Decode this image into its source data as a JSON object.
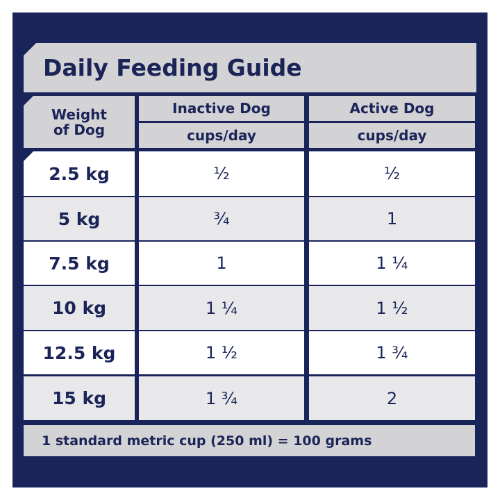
{
  "title": "Daily Feeding Guide",
  "header": {
    "weight": [
      "Weight",
      "of Dog"
    ],
    "inactive": "Inactive Dog",
    "active": "Active Dog",
    "unit": "cups/day"
  },
  "rows": [
    {
      "weight": "2.5 kg",
      "inactive": "½",
      "active": "½"
    },
    {
      "weight": "5 kg",
      "inactive": "¾",
      "active": "1"
    },
    {
      "weight": "7.5 kg",
      "inactive": "1",
      "active": "1 ¼"
    },
    {
      "weight": "10 kg",
      "inactive": "1 ¼",
      "active": "1 ½"
    },
    {
      "weight": "12.5 kg",
      "inactive": "1 ½",
      "active": "1 ¾"
    },
    {
      "weight": "15 kg",
      "inactive": "1 ¾",
      "active": "2"
    }
  ],
  "footer": "1 standard metric cup (250 ml) = 100 grams",
  "colors": {
    "navy": "#18245a",
    "header_gray": "#d3d3d5",
    "row_light": "#e8e8eb"
  }
}
